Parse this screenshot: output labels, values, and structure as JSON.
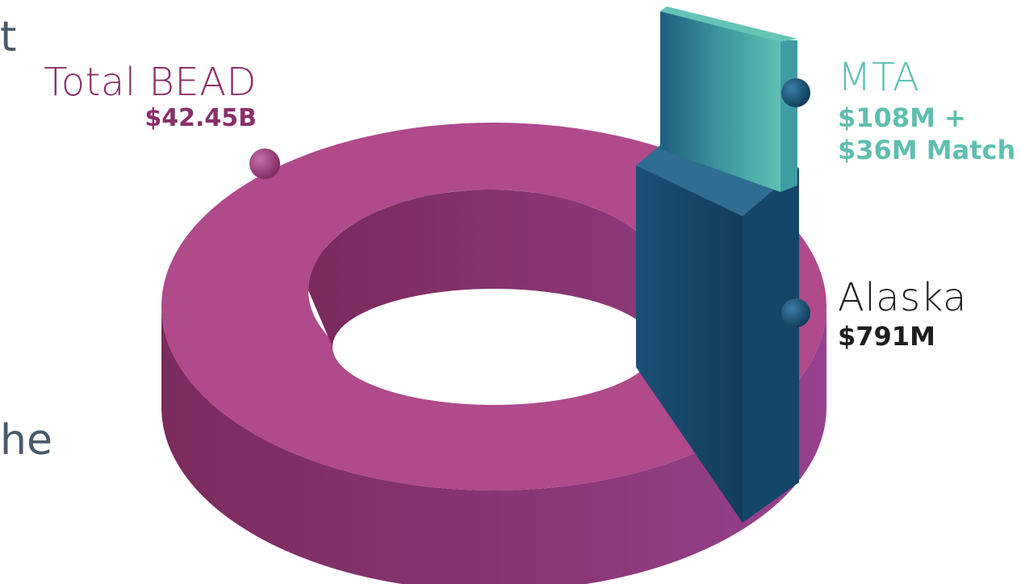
{
  "page_fragments": {
    "top_left": "t",
    "bottom_left": "he"
  },
  "colors": {
    "total_bead": "#b04a8a",
    "total_bead_text": "#8a2f6a",
    "alaska": "#174f72",
    "mta": "#5fbfb0",
    "alaska_text": "#1e1e1e"
  },
  "chart_data": {
    "type": "pie",
    "style": "3d-donut",
    "title": "",
    "slices": [
      {
        "name": "Total BEAD",
        "value_label": "$42.45B",
        "value": 42450,
        "unit": "$M",
        "color": "#b04a8a"
      },
      {
        "name": "Alaska",
        "value_label": "$791M",
        "value": 791,
        "unit": "$M",
        "color": "#174f72"
      },
      {
        "name": "MTA",
        "value_label_line1": "$108M +",
        "value_label_line2": "$36M Match",
        "value": 108,
        "match": 36,
        "unit": "$M",
        "color": "#5fbfb0"
      }
    ]
  }
}
